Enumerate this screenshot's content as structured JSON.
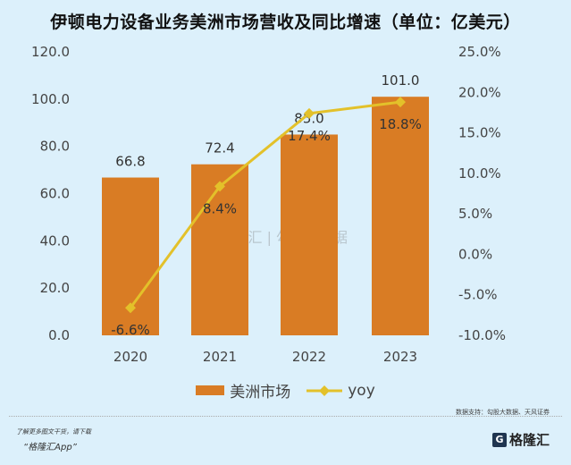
{
  "title": "伊顿电力设备业务美洲市场营收及同比增速（单位：亿美元）",
  "chart_data": {
    "type": "bar+line",
    "categories": [
      "2020",
      "2021",
      "2022",
      "2023"
    ],
    "series": [
      {
        "name": "美洲市场",
        "type": "bar",
        "axis": "left",
        "values": [
          66.8,
          72.4,
          85.0,
          101.0
        ],
        "labels": [
          "66.8",
          "72.4",
          "85.0",
          "101.0"
        ],
        "color": "#d97c24"
      },
      {
        "name": "yoy",
        "type": "line",
        "axis": "right",
        "values": [
          -6.6,
          8.4,
          17.4,
          18.8
        ],
        "labels": [
          "-6.6%",
          "8.4%",
          "17.4%",
          "18.8%"
        ],
        "color": "#e3c12a"
      }
    ],
    "left_axis": {
      "ylim": [
        0,
        120
      ],
      "ticks": [
        "0.0",
        "20.0",
        "40.0",
        "60.0",
        "80.0",
        "100.0",
        "120.0"
      ]
    },
    "right_axis": {
      "ylim": [
        -10,
        25
      ],
      "ticks": [
        "-10.0%",
        "-5.0%",
        "0.0%",
        "5.0%",
        "10.0%",
        "15.0%",
        "20.0%",
        "25.0%"
      ]
    },
    "legend": "bottom",
    "grid": false
  },
  "watermark": "格隆汇 | 勾股大数据 www.gogudata.com",
  "source": "数据支持：勾股大数据、天风证券",
  "promo_line1": "了解更多图文干货，请下载",
  "promo_line2": "“格隆汇App”",
  "logo_text": "格隆汇"
}
